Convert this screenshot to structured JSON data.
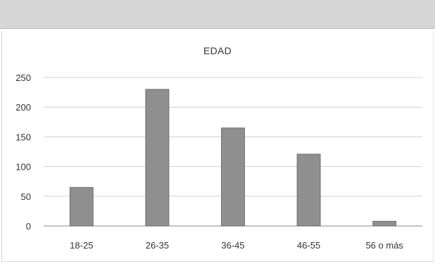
{
  "chart_data": {
    "type": "bar",
    "title": "EDAD",
    "categories": [
      "18-25",
      "26-35",
      "36-45",
      "46-55",
      "56 o más"
    ],
    "values": [
      65,
      230,
      165,
      121,
      8
    ],
    "yticks": [
      0,
      50,
      100,
      150,
      200,
      250
    ],
    "ylim": [
      0,
      250
    ],
    "xlabel": "",
    "ylabel": "",
    "grid": true,
    "legend": "none",
    "colors": {
      "bar": "#8f8f8f",
      "bar_edge": "#5f5f5f",
      "grid": "#d0d0d0",
      "axis": "#8a8a8a",
      "header_band": "#d6d6d6"
    }
  }
}
